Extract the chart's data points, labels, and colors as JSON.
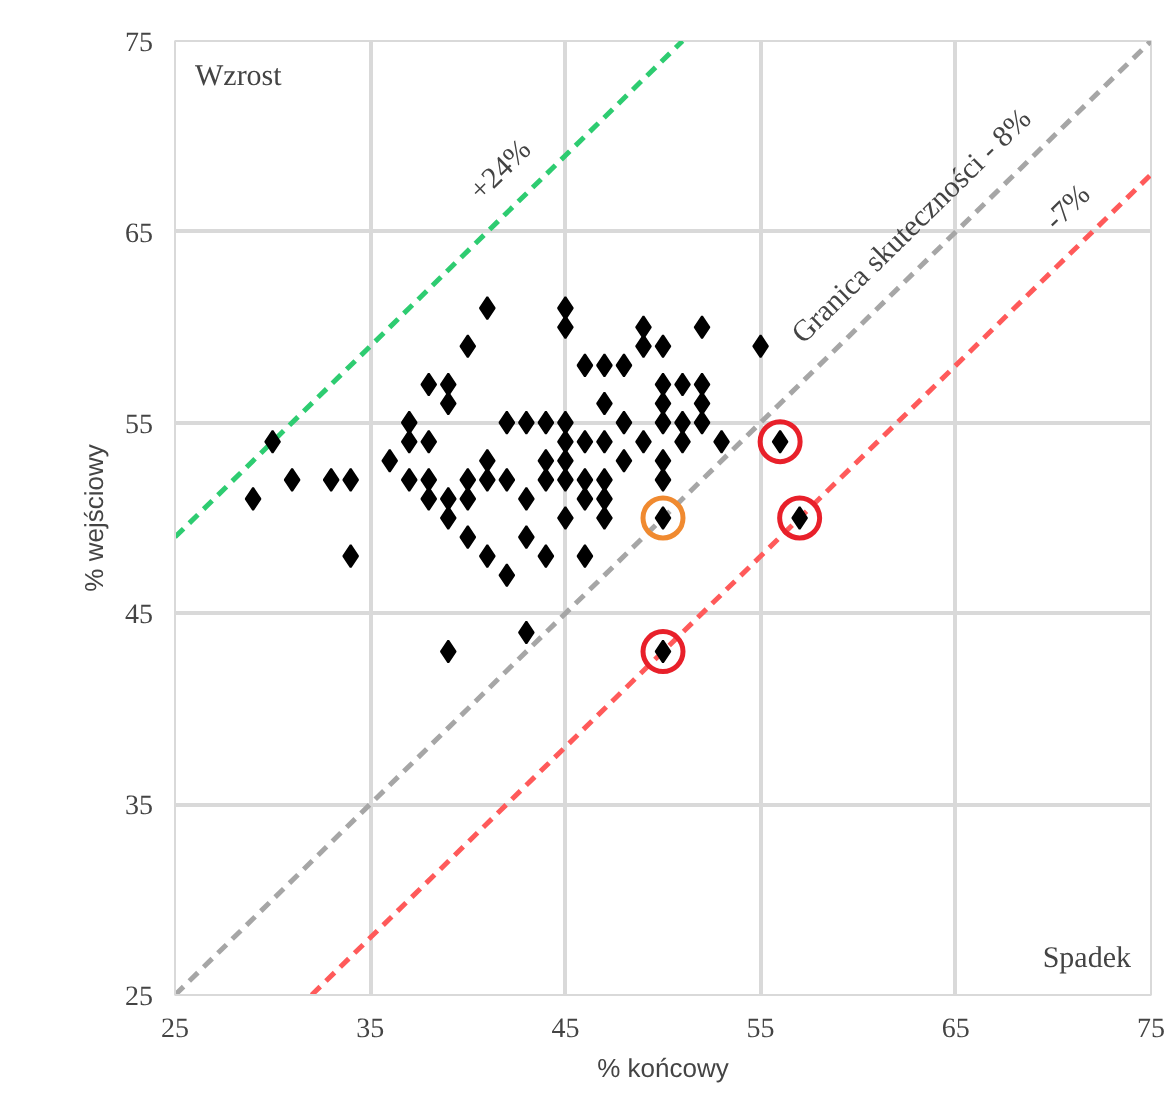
{
  "chart_data": {
    "type": "scatter",
    "xlabel": "% końcowy",
    "ylabel": "% wejściowy",
    "xlim": [
      25,
      75
    ],
    "ylim": [
      25,
      75
    ],
    "xticks": [
      25,
      35,
      45,
      55,
      65,
      75
    ],
    "yticks": [
      25,
      35,
      45,
      55,
      65,
      75
    ],
    "grid": true,
    "series": [
      {
        "type": "line",
        "color": "#2ecc71",
        "line_style": "dashed",
        "x": [
          25,
          51
        ],
        "values": [
          49,
          75
        ]
      },
      {
        "type": "line",
        "color": "#a6a6a6",
        "line_style": "dashed",
        "x": [
          25,
          75
        ],
        "values": [
          25,
          75
        ]
      },
      {
        "type": "line",
        "color": "#ff5a5a",
        "line_style": "dashed",
        "x": [
          32,
          75
        ],
        "values": [
          25,
          68
        ]
      },
      {
        "color": "#000000",
        "marker": "diamond",
        "x": [
          29,
          30,
          31,
          33,
          34,
          34,
          36,
          37,
          37,
          37,
          38,
          38,
          38,
          38,
          39,
          39,
          39,
          39,
          39,
          40,
          40,
          40,
          40,
          41,
          41,
          41,
          41,
          42,
          42,
          42,
          43,
          43,
          43,
          43,
          44,
          44,
          44,
          44,
          45,
          45,
          45,
          45,
          45,
          45,
          45,
          46,
          46,
          46,
          46,
          46,
          47,
          47,
          47,
          47,
          47,
          47,
          48,
          48,
          48,
          49,
          49,
          49,
          50,
          50,
          50,
          50,
          50,
          50,
          50,
          50,
          51,
          51,
          51,
          52,
          52,
          52,
          52,
          53,
          55,
          56,
          57
        ],
        "values": [
          51,
          54,
          52,
          52,
          52,
          48,
          53,
          55,
          54,
          52,
          57,
          54,
          52,
          51,
          57,
          56,
          51,
          50,
          43,
          59,
          52,
          51,
          49,
          61,
          53,
          52,
          48,
          55,
          52,
          47,
          55,
          51,
          49,
          44,
          55,
          53,
          52,
          48,
          61,
          60,
          55,
          54,
          53,
          52,
          50,
          58,
          54,
          52,
          51,
          48,
          58,
          56,
          54,
          52,
          51,
          50,
          58,
          55,
          53,
          60,
          59,
          54,
          59,
          57,
          56,
          55,
          53,
          52,
          50,
          43,
          57,
          55,
          54,
          60,
          57,
          56,
          55,
          54,
          59,
          54,
          50
        ]
      },
      {
        "type": "scatter",
        "color": "#e8202a",
        "marker": "circle",
        "x": [
          56,
          57,
          50
        ],
        "values": [
          54,
          50,
          43
        ]
      },
      {
        "type": "scatter",
        "color": "#f08a30",
        "marker": "circle",
        "x": [
          50
        ],
        "values": [
          50
        ]
      }
    ],
    "annotations": [
      "Wzrost",
      "Spadek",
      "+24%",
      "Granica skuteczności - 8%",
      "-7%"
    ]
  }
}
